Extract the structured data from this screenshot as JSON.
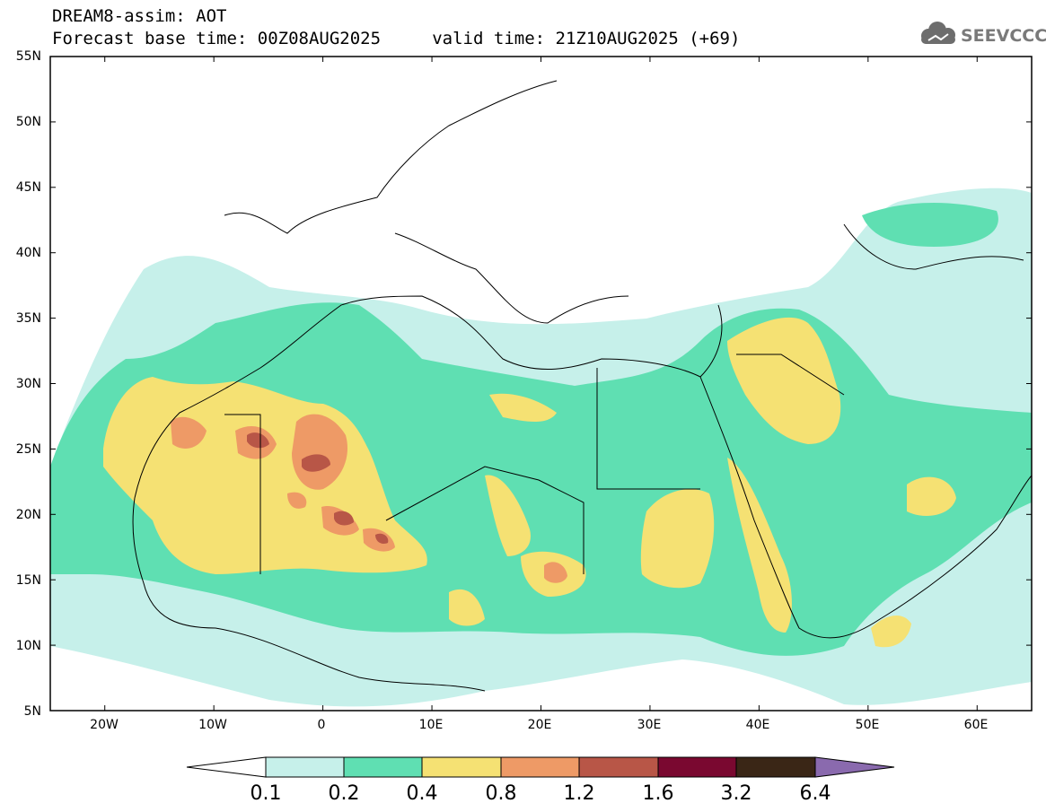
{
  "title": {
    "line1": "DREAM8-assim: AOT",
    "line2": "Forecast base time: 00Z08AUG2025     valid time: 21Z10AUG2025 (+69)"
  },
  "logo": {
    "text": "SEEVCCC",
    "icon": "cloud-icon"
  },
  "map": {
    "variable": "AOT",
    "lat_range": [
      5,
      55
    ],
    "lon_range": [
      -25,
      65
    ],
    "lat_ticks": [
      "55N",
      "50N",
      "45N",
      "40N",
      "35N",
      "30N",
      "25N",
      "20N",
      "15N",
      "10N",
      "5N"
    ],
    "lon_ticks": [
      "20W",
      "10W",
      "0",
      "10E",
      "20E",
      "30E",
      "40E",
      "50E",
      "60E"
    ]
  },
  "colorbar": {
    "labels": [
      "0.1",
      "0.2",
      "0.4",
      "0.8",
      "1.2",
      "1.6",
      "3.2",
      "6.4"
    ],
    "colors": [
      "#ffffff",
      "#c6f0ea",
      "#5fdfb2",
      "#f5e173",
      "#ee9a66",
      "#b85647",
      "#7a0830",
      "#3a2616",
      "#8a6aae"
    ]
  },
  "colors": {
    "level_01": "#c6f0ea",
    "level_02": "#5fdfb2",
    "level_04": "#f5e173",
    "level_08": "#ee9a66",
    "level_12": "#b85647",
    "level_16": "#7a0830"
  }
}
